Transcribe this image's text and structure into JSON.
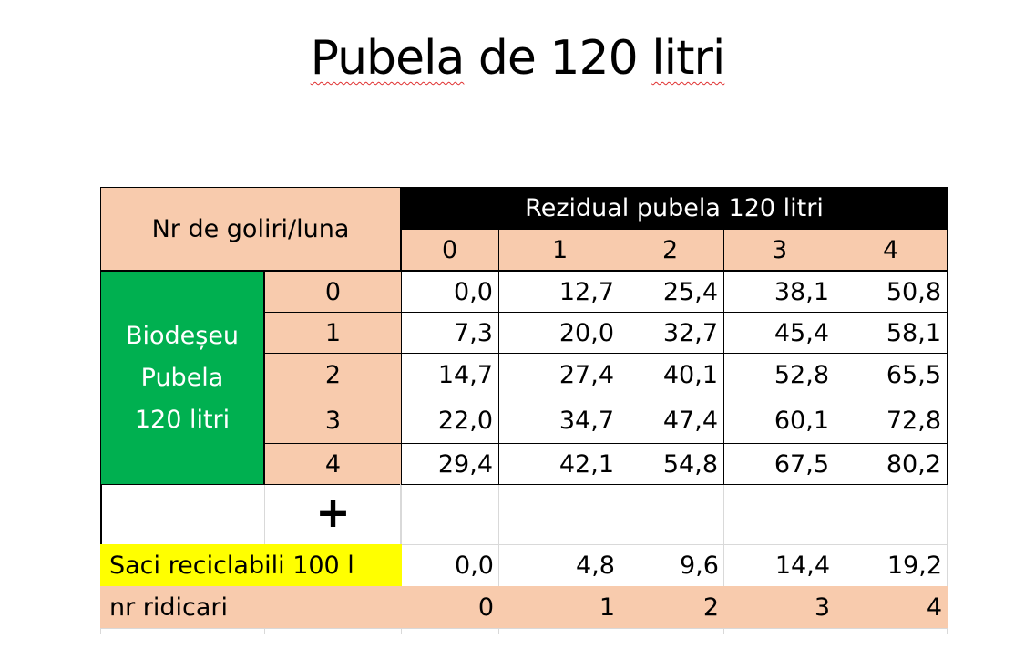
{
  "title": {
    "part1": "Pubela",
    "part2": " de 120 ",
    "part3": "litri"
  },
  "table": {
    "corner_label": "Nr de goliri/luna",
    "column_group_header": "Rezidual pubela 120 litri",
    "column_headers": [
      "0",
      "1",
      "2",
      "3",
      "4"
    ],
    "row_group_label": [
      "Biodeșeu",
      "Pubela",
      "120 litri"
    ],
    "row_headers": [
      "0",
      "1",
      "2",
      "3",
      "4"
    ],
    "values": [
      [
        "0,0",
        "12,7",
        "25,4",
        "38,1",
        "50,8"
      ],
      [
        "7,3",
        "20,0",
        "32,7",
        "45,4",
        "58,1"
      ],
      [
        "14,7",
        "27,4",
        "40,1",
        "52,8",
        "65,5"
      ],
      [
        "22,0",
        "34,7",
        "47,4",
        "60,1",
        "72,8"
      ],
      [
        "29,4",
        "42,1",
        "54,8",
        "67,5",
        "80,2"
      ]
    ],
    "plus_sign": "+",
    "recycle_label": "Saci reciclabili 100 l",
    "recycle_values": [
      "0,0",
      "4,8",
      "9,6",
      "14,4",
      "19,2"
    ],
    "pickups_label": "nr ridicari",
    "pickups_values": [
      "0",
      "1",
      "2",
      "3",
      "4"
    ]
  },
  "colors": {
    "peach": "#f8cbad",
    "header_black": "#000000",
    "green": "#00b050",
    "yellow": "#ffff00"
  }
}
